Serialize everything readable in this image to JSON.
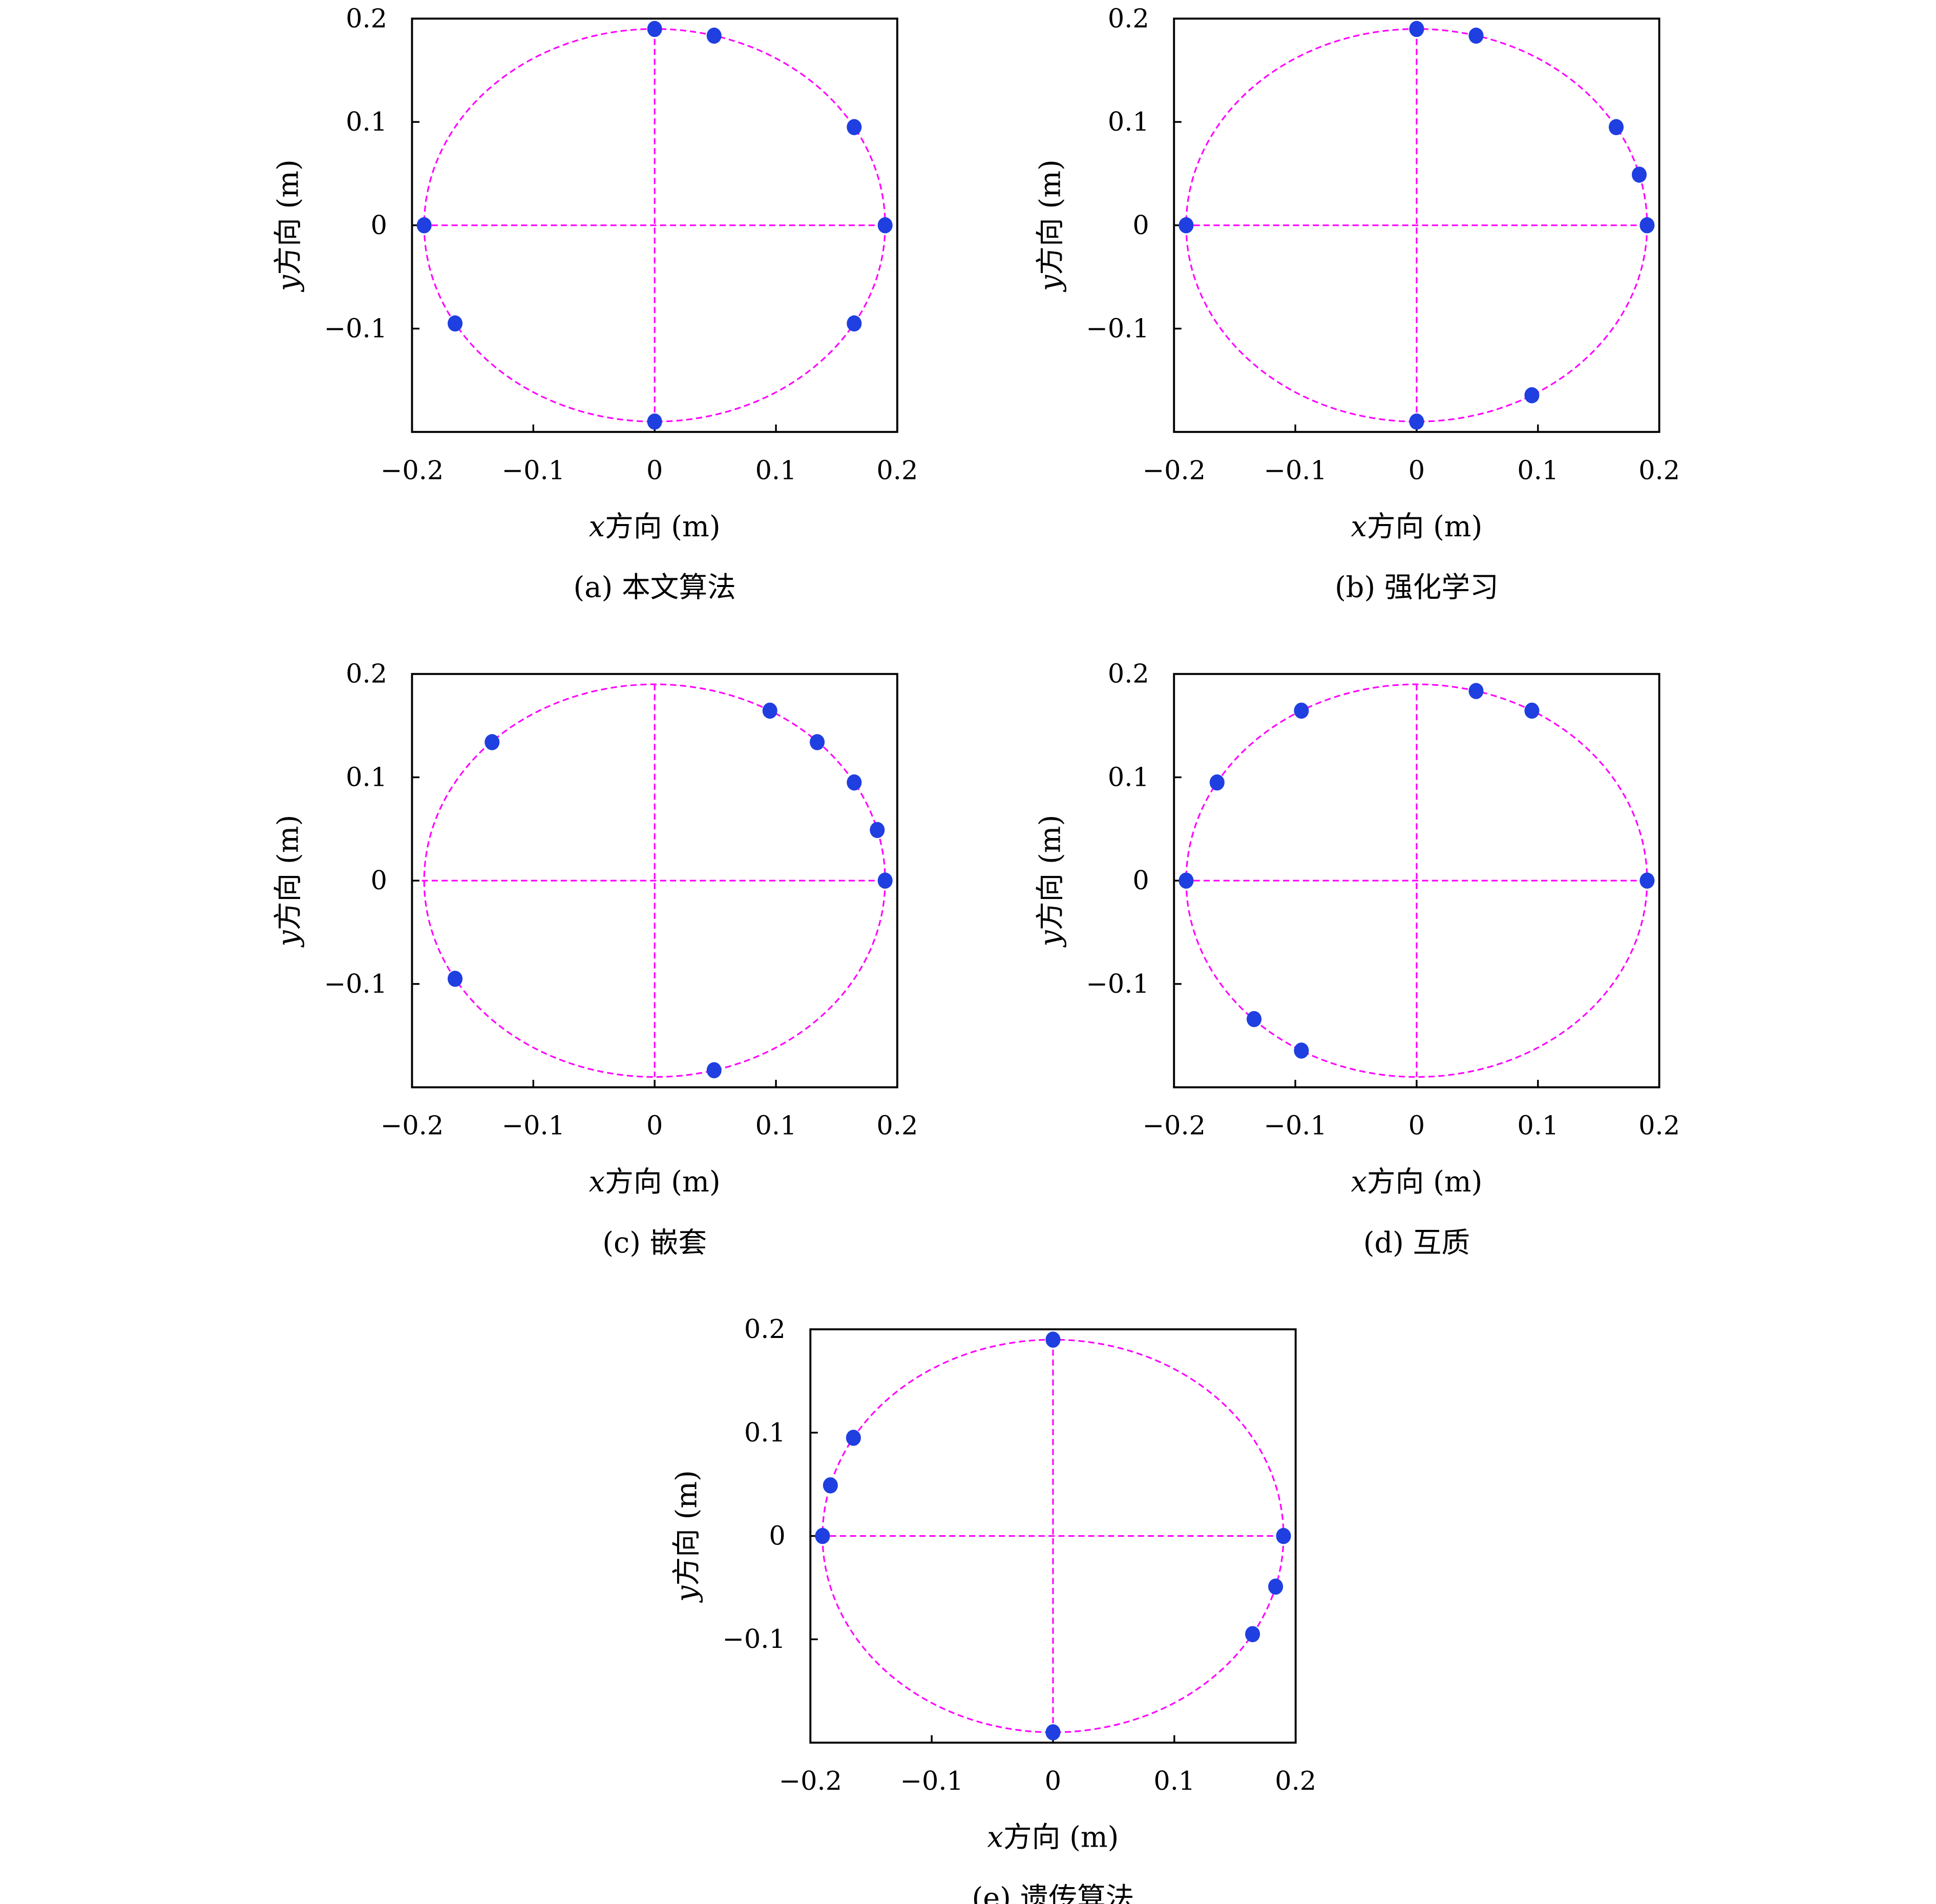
{
  "chart_data": [
    {
      "type": "scatter",
      "caption": "(a) 本文算法",
      "xlabel_var": "x",
      "xlabel": "方向 (m)",
      "ylabel_var": "y",
      "ylabel": "方向 (m)",
      "xlim": [
        -0.2,
        0.2
      ],
      "ylim": [
        -0.2,
        0.2
      ],
      "xticks": [
        "−0.2",
        "−0.1",
        "0",
        "0.1",
        "0.2"
      ],
      "yticks": [
        "0.2",
        "0.1",
        "0",
        "−0.1"
      ],
      "reference_circle_radius": 0.19,
      "points": [
        [
          0,
          0.19
        ],
        [
          0.049,
          0.1835
        ],
        [
          0.1645,
          0.095
        ],
        [
          0.19,
          0
        ],
        [
          -0.19,
          0
        ],
        [
          -0.1645,
          -0.095
        ],
        [
          0.1645,
          -0.095
        ],
        [
          0,
          -0.19
        ]
      ]
    },
    {
      "type": "scatter",
      "caption": "(b) 强化学习",
      "xlabel_var": "x",
      "xlabel": "方向 (m)",
      "ylabel_var": "y",
      "ylabel": "方向 (m)",
      "xlim": [
        -0.2,
        0.2
      ],
      "ylim": [
        -0.2,
        0.2
      ],
      "xticks": [
        "−0.2",
        "−0.1",
        "0",
        "0.1",
        "0.2"
      ],
      "yticks": [
        "0.2",
        "0.1",
        "0",
        "−0.1"
      ],
      "reference_circle_radius": 0.19,
      "points": [
        [
          0,
          0.19
        ],
        [
          0.049,
          0.1835
        ],
        [
          0.1645,
          0.095
        ],
        [
          0.1835,
          0.049
        ],
        [
          0.19,
          0
        ],
        [
          -0.19,
          0
        ],
        [
          0.095,
          -0.1645
        ],
        [
          0,
          -0.19
        ]
      ]
    },
    {
      "type": "scatter",
      "caption": "(c) 嵌套",
      "xlabel_var": "x",
      "xlabel": "方向 (m)",
      "ylabel_var": "y",
      "ylabel": "方向 (m)",
      "xlim": [
        -0.2,
        0.2
      ],
      "ylim": [
        -0.2,
        0.2
      ],
      "xticks": [
        "−0.2",
        "−0.1",
        "0",
        "0.1",
        "0.2"
      ],
      "yticks": [
        "0.2",
        "0.1",
        "0",
        "−0.1"
      ],
      "reference_circle_radius": 0.19,
      "points": [
        [
          -0.134,
          0.134
        ],
        [
          0.095,
          0.1645
        ],
        [
          0.134,
          0.134
        ],
        [
          0.1645,
          0.095
        ],
        [
          0.1835,
          0.049
        ],
        [
          0.19,
          0
        ],
        [
          -0.1645,
          -0.095
        ],
        [
          0.049,
          -0.1835
        ]
      ]
    },
    {
      "type": "scatter",
      "caption": "(d) 互质",
      "xlabel_var": "x",
      "xlabel": "方向 (m)",
      "ylabel_var": "y",
      "ylabel": "方向 (m)",
      "xlim": [
        -0.2,
        0.2
      ],
      "ylim": [
        -0.2,
        0.2
      ],
      "xticks": [
        "−0.2",
        "−0.1",
        "0",
        "0.1",
        "0.2"
      ],
      "yticks": [
        "0.2",
        "0.1",
        "0",
        "−0.1"
      ],
      "reference_circle_radius": 0.19,
      "points": [
        [
          -0.1645,
          0.095
        ],
        [
          -0.095,
          0.1645
        ],
        [
          0.049,
          0.1835
        ],
        [
          0.095,
          0.1645
        ],
        [
          0.19,
          0
        ],
        [
          -0.19,
          0
        ],
        [
          -0.134,
          -0.134
        ],
        [
          -0.095,
          -0.1645
        ]
      ]
    },
    {
      "type": "scatter",
      "caption": "(e) 遗传算法",
      "xlabel_var": "x",
      "xlabel": "方向 (m)",
      "ylabel_var": "y",
      "ylabel": "方向 (m)",
      "xlim": [
        -0.2,
        0.2
      ],
      "ylim": [
        -0.2,
        0.2
      ],
      "xticks": [
        "−0.2",
        "−0.1",
        "0",
        "0.1",
        "0.2"
      ],
      "yticks": [
        "0.2",
        "0.1",
        "0",
        "−0.1"
      ],
      "reference_circle_radius": 0.19,
      "points": [
        [
          0,
          0.19
        ],
        [
          -0.1645,
          0.095
        ],
        [
          -0.1835,
          0.049
        ],
        [
          -0.19,
          0
        ],
        [
          0.19,
          0
        ],
        [
          0.1835,
          -0.049
        ],
        [
          0.1645,
          -0.095
        ],
        [
          0,
          -0.19
        ]
      ]
    }
  ],
  "colors": {
    "points": "#1f3fe0",
    "reference": "#ff00ff",
    "axes": "#000000"
  }
}
